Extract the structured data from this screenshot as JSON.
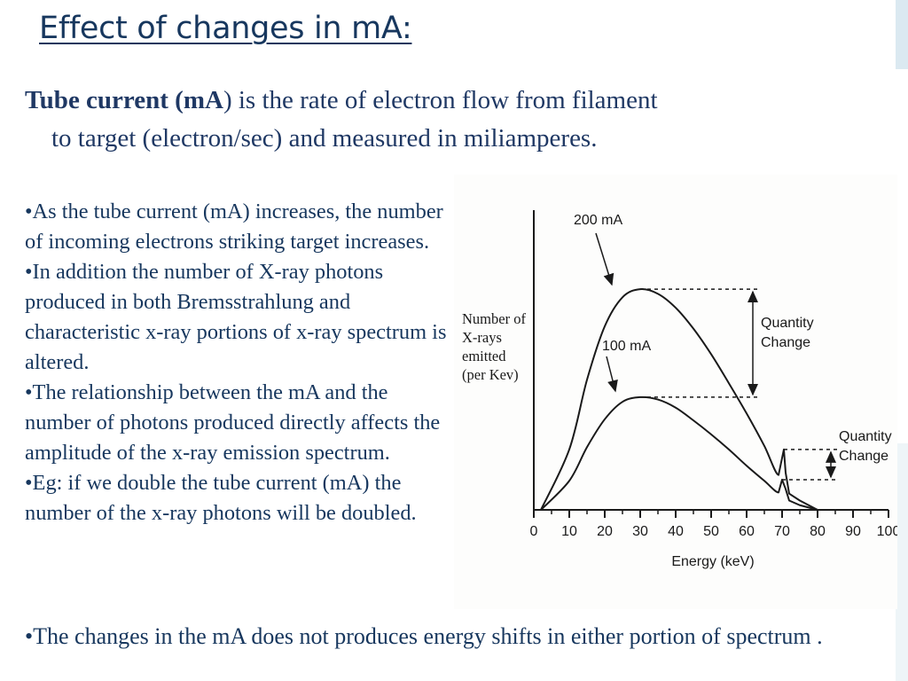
{
  "slide": {
    "title": "Effect of changes in mA:",
    "intro": {
      "term": "Tube current (mA",
      "line1_rest": ") is the rate of electron flow from filament",
      "line2": "to target (electron/sec) and measured in miliamperes."
    },
    "bullets": [
      "•As the tube current (mA) increases, the number of incoming electrons striking target increases.",
      "•In addition the number of X-ray photons produced in both Bremsstrahlung and characteristic x-ray portions of x-ray spectrum is altered.",
      "•The relationship between the mA and the number of photons produced directly affects the amplitude of the x-ray emission spectrum.",
      "•Eg: if we double the tube current (mA) the number of the x-ray photons will be doubled."
    ],
    "last_bullet": "•The changes in the mA does not produces energy shifts in either portion of spectrum ."
  },
  "figure": {
    "y_label": "Number of X-rays emitted (per Kev)",
    "x_label": "Energy (keV)",
    "x_ticks": [
      "0",
      "10",
      "20",
      "30",
      "40",
      "50",
      "60",
      "70",
      "80",
      "90",
      "100"
    ],
    "annotations": {
      "curve_high": "200 mA",
      "curve_low": "100 mA",
      "quantity_change_1": [
        "Quantity",
        "Change"
      ],
      "quantity_change_2": [
        "Quantity",
        "Change"
      ]
    }
  },
  "chart_data": {
    "type": "line",
    "title": "",
    "xlabel": "Energy (keV)",
    "ylabel": "Number of X-rays emitted (per Kev)",
    "xlim": [
      0,
      100
    ],
    "grid": false,
    "series": [
      {
        "name": "200 mA",
        "x": [
          2,
          10,
          15,
          20,
          25,
          30,
          35,
          40,
          45,
          50,
          55,
          60,
          65,
          69,
          70.5,
          71,
          72,
          75,
          80
        ],
        "y": [
          0,
          52,
          112,
          158,
          183,
          190,
          186,
          174,
          156,
          134,
          109,
          83,
          55,
          30,
          52,
          32,
          14,
          8,
          0
        ]
      },
      {
        "name": "100 mA",
        "x": [
          2,
          10,
          15,
          20,
          25,
          30,
          35,
          40,
          45,
          50,
          55,
          60,
          65,
          69,
          70,
          71,
          72,
          75,
          80
        ],
        "y": [
          0,
          25,
          54,
          78,
          93,
          97,
          95,
          88,
          77,
          65,
          52,
          38,
          25,
          15,
          26,
          18,
          8,
          4,
          0
        ]
      }
    ],
    "colors": {
      "curve": "#1a1a1a",
      "background": "#fdfdfc"
    }
  }
}
